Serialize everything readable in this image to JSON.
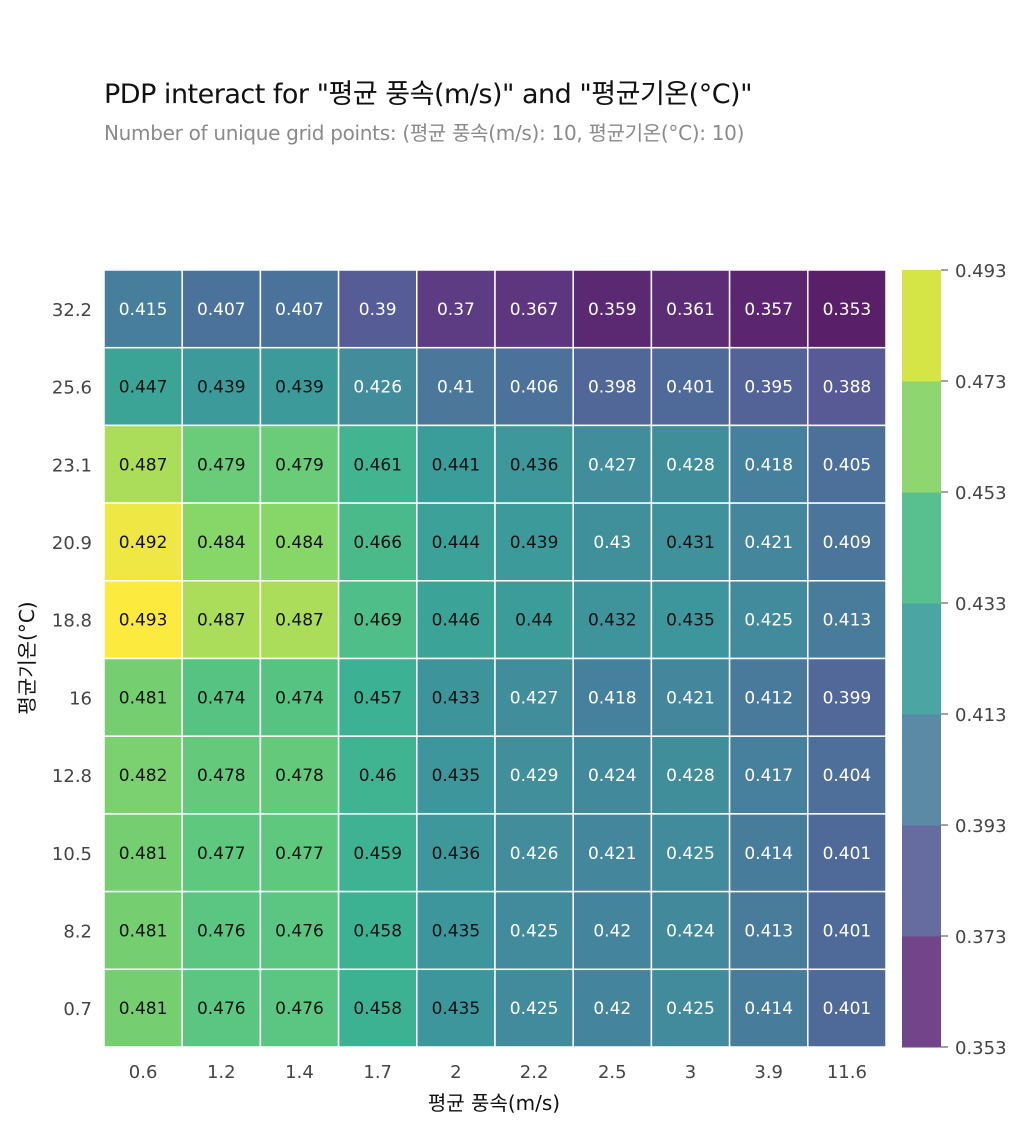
{
  "chart_data": {
    "type": "heatmap",
    "title": "PDP interact for \"평균 풍속(m/s)\" and \"평균기온(°C)\"",
    "subtitle": "Number of unique grid points: (평균 풍속(m/s): 10, 평균기온(°C): 10)",
    "xlabel": "평균 풍속(m/s)",
    "ylabel": "평균기온(°C)",
    "x": [
      "0.6",
      "1.2",
      "1.4",
      "1.7",
      "2",
      "2.2",
      "2.5",
      "3",
      "3.9",
      "11.6"
    ],
    "y": [
      "32.2",
      "25.6",
      "23.1",
      "20.9",
      "18.8",
      "16",
      "12.8",
      "10.5",
      "8.2",
      "0.7"
    ],
    "values": [
      [
        "0.415",
        "0.407",
        "0.407",
        "0.39",
        "0.37",
        "0.367",
        "0.359",
        "0.361",
        "0.357",
        "0.353"
      ],
      [
        "0.447",
        "0.439",
        "0.439",
        "0.426",
        "0.41",
        "0.406",
        "0.398",
        "0.401",
        "0.395",
        "0.388"
      ],
      [
        "0.487",
        "0.479",
        "0.479",
        "0.461",
        "0.441",
        "0.436",
        "0.427",
        "0.428",
        "0.418",
        "0.405"
      ],
      [
        "0.492",
        "0.484",
        "0.484",
        "0.466",
        "0.444",
        "0.439",
        "0.43",
        "0.431",
        "0.421",
        "0.409"
      ],
      [
        "0.493",
        "0.487",
        "0.487",
        "0.469",
        "0.446",
        "0.44",
        "0.432",
        "0.435",
        "0.425",
        "0.413"
      ],
      [
        "0.481",
        "0.474",
        "0.474",
        "0.457",
        "0.433",
        "0.427",
        "0.418",
        "0.421",
        "0.412",
        "0.399"
      ],
      [
        "0.482",
        "0.478",
        "0.478",
        "0.46",
        "0.435",
        "0.429",
        "0.424",
        "0.428",
        "0.417",
        "0.404"
      ],
      [
        "0.481",
        "0.477",
        "0.477",
        "0.459",
        "0.436",
        "0.426",
        "0.421",
        "0.425",
        "0.414",
        "0.401"
      ],
      [
        "0.481",
        "0.476",
        "0.476",
        "0.458",
        "0.435",
        "0.425",
        "0.42",
        "0.424",
        "0.413",
        "0.401"
      ],
      [
        "0.481",
        "0.476",
        "0.476",
        "0.458",
        "0.435",
        "0.425",
        "0.42",
        "0.425",
        "0.414",
        "0.401"
      ]
    ],
    "zlim": [
      0.353,
      0.493
    ],
    "colorscale": "viridis",
    "colorbar_ticks": [
      "0.353",
      "0.373",
      "0.393",
      "0.413",
      "0.433",
      "0.453",
      "0.473",
      "0.493"
    ],
    "colorbar_bands": [
      "#72458a",
      "#676ca0",
      "#5a8aa5",
      "#4ba6a3",
      "#58c08e",
      "#8dd670",
      "#d5e546"
    ]
  }
}
